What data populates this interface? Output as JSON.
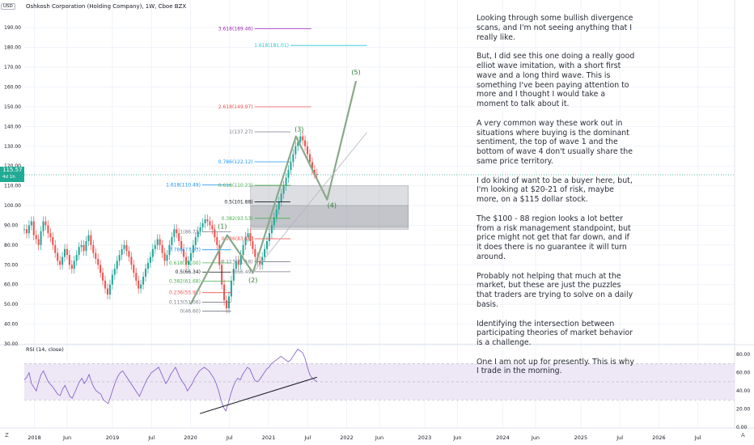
{
  "header": {
    "currency_badge": "USD",
    "title": "Oshkosh Corporation (Holding Company), 1W, Cboe BZX"
  },
  "price_badge": {
    "price": "115.57",
    "countdown": "4d 1h"
  },
  "rsi_label": "RSI (14, close)",
  "bottom_bar": {
    "left_icon": "Z",
    "right_icon": "A"
  },
  "commentary": [
    "Looking through some bullish divergence scans, and I'm not seeing anything that I really like.",
    "But, I did see this one doing a really good elliot wave imitation, with a short first wave and a long third wave. This is something I've been paying attention to more and I thought I would take a moment to talk about it.",
    "A very common way these work out in situations where buying is the dominant sentiment, the top of wave 1 and the bottom of wave 4 don't usually share the same price territory.",
    "I do kind of want to be a buyer here, but, I'm looking at $20-21 of risk, maybe more, on a $115 dollar stock.",
    "The $100 - 88 region looks a lot better from a risk management standpoint, but price might not get that far down, and if it does there is no guarantee it will turn around.",
    "Probably not helping that much at the market, but these are just the puzzles that traders are trying to solve on a daily basis.",
    "Identifying the intersection between participating theories of market behavior is a challenge.",
    "One I am not up for presently. This is why I trade in the morning."
  ],
  "colors": {
    "up": "#26a69a",
    "down": "#ef5350",
    "rsi_line": "#7e57c2",
    "rsi_band": "#ede7f6",
    "wave": "#8aa88a",
    "fib_red": "#ef5350",
    "fib_blue": "#2196f3",
    "fib_purple": "#9c27b0",
    "fib_green": "#4caf50",
    "fib_gray": "#787b86",
    "fib_black": "#131722",
    "fib_teal": "#26c6da"
  },
  "chart_data": [
    {
      "type": "candlestick",
      "title": "Oshkosh Corporation (Holding Company), 1W, Cboe BZX",
      "ylim": [
        30,
        195
      ],
      "y_ticks": [
        "190.00",
        "180.00",
        "170.00",
        "160.00",
        "150.00",
        "140.00",
        "130.00",
        "120.00",
        "110.00",
        "100.00",
        "90.00",
        "80.00",
        "70.00",
        "60.00",
        "50.00",
        "40.00",
        "30.00"
      ],
      "x_ticks": [
        "2018",
        "Jun",
        "2019",
        "Jul",
        "2020",
        "Jul",
        "2021",
        "Jul",
        "2022",
        "Jun",
        "2023",
        "Jun",
        "2024",
        "Jun",
        "2025",
        "Jul",
        "2026",
        "Jul"
      ],
      "x_tick_dates": [
        2018.0,
        2018.42,
        2019.0,
        2019.5,
        2020.0,
        2020.5,
        2021.0,
        2021.5,
        2022.0,
        2022.42,
        2023.0,
        2023.42,
        2024.0,
        2024.42,
        2025.0,
        2025.5,
        2026.0,
        2026.5
      ],
      "last_price": 115.57,
      "weekly_closes": [
        88,
        86,
        90,
        92,
        85,
        83,
        80,
        87,
        92,
        90,
        86,
        84,
        80,
        76,
        72,
        70,
        74,
        78,
        75,
        70,
        68,
        72,
        75,
        79,
        80,
        77,
        82,
        85,
        80,
        76,
        73,
        70,
        66,
        62,
        58,
        55,
        60,
        65,
        68,
        72,
        75,
        78,
        80,
        77,
        74,
        70,
        66,
        62,
        58,
        60,
        64,
        68,
        71,
        74,
        78,
        80,
        83,
        80,
        76,
        72,
        75,
        80,
        84,
        88,
        86,
        82,
        78,
        74,
        70,
        72,
        76,
        80,
        84,
        87,
        89,
        91,
        93,
        92,
        90,
        88,
        84,
        80,
        70,
        60,
        52,
        48,
        54,
        62,
        68,
        72,
        70,
        75,
        80,
        84,
        86,
        82,
        78,
        74,
        72,
        70,
        74,
        78,
        82,
        86,
        90,
        94,
        98,
        102,
        106,
        110,
        114,
        118,
        122,
        126,
        130,
        132,
        135,
        133,
        130,
        126,
        122,
        118,
        116,
        115.57
      ],
      "waves": {
        "labels": [
          "(1)",
          "(2)",
          "(3)",
          "(4)",
          "(5)"
        ],
        "points": [
          {
            "t": 2020.0,
            "y": 50
          },
          {
            "t": 2020.47,
            "y": 85
          },
          {
            "t": 2020.8,
            "y": 66
          },
          {
            "t": 2021.35,
            "y": 135
          },
          {
            "t": 2021.75,
            "y": 103
          },
          {
            "t": 2022.12,
            "y": 163
          }
        ],
        "trendline": [
          {
            "t": 2020.8,
            "y": 66
          },
          {
            "t": 2022.26,
            "y": 137
          }
        ]
      },
      "fib_levels": [
        {
          "label": "3.618(189.46)",
          "value": 189.46,
          "color": "fib_purple",
          "t0": 2020.82,
          "t1": 2020.82
        },
        {
          "label": "1.618(181.01)",
          "value": 181.01,
          "color": "fib_teal",
          "t0": 2021.28,
          "t1": 2022.26
        },
        {
          "label": "2.618(149.97)",
          "value": 149.97,
          "color": "fib_red",
          "t0": 2020.82,
          "t1": 2020.82
        },
        {
          "label": "1(137.27)",
          "value": 137.27,
          "color": "fib_gray",
          "t0": 2020.82,
          "t1": 2021.28
        },
        {
          "label": "0.786(122.12)",
          "value": 122.12,
          "color": "fib_blue",
          "t0": 2020.82,
          "t1": 2021.28
        },
        {
          "label": "1.618(110.49)",
          "value": 110.49,
          "color": "fib_blue",
          "t0": 2020.15,
          "t1": 2020.52
        },
        {
          "label": "0.618(110.23)",
          "value": 110.23,
          "color": "fib_green",
          "t0": 2020.82,
          "t1": 2021.28
        },
        {
          "label": "0.5(101.88)",
          "value": 101.88,
          "color": "fib_black",
          "t0": 2020.82,
          "t1": 2021.28
        },
        {
          "label": "0.382(93.53)",
          "value": 93.53,
          "color": "fib_green",
          "t0": 2020.82,
          "t1": 2021.28
        },
        {
          "label": "1(86.71)",
          "value": 86.71,
          "color": "fib_gray",
          "t0": 2020.15,
          "t1": 2020.52
        },
        {
          "label": "0.236(83.19)",
          "value": 83.19,
          "color": "fib_red",
          "t0": 2020.82,
          "t1": 2021.28
        },
        {
          "label": "0.786(77.63)",
          "value": 77.63,
          "color": "fib_blue",
          "t0": 2020.15,
          "t1": 2020.52
        },
        {
          "label": "0.113(71.58)",
          "value": 71.58,
          "color": "fib_gray",
          "t0": 2020.82,
          "t1": 2021.28
        },
        {
          "label": "0.618(71.00)",
          "value": 71.0,
          "color": "fib_green",
          "t0": 2020.15,
          "t1": 2020.52
        },
        {
          "label": "0.5(66.34)",
          "value": 66.34,
          "color": "fib_black",
          "t0": 2020.15,
          "t1": 2020.52
        },
        {
          "label": "0(66.49)",
          "value": 66.49,
          "color": "fib_gray",
          "t0": 2020.82,
          "t1": 2021.28
        },
        {
          "label": "0.382(61.68)",
          "value": 61.68,
          "color": "fib_green",
          "t0": 2020.15,
          "t1": 2020.52
        },
        {
          "label": "0.236(55.92)",
          "value": 55.92,
          "color": "fib_red",
          "t0": 2020.15,
          "t1": 2020.52
        },
        {
          "label": "0.113(51.06)",
          "value": 51.06,
          "color": "fib_gray",
          "t0": 2020.15,
          "t1": 2020.52
        },
        {
          "label": "0(46.60)",
          "value": 46.6,
          "color": "fib_gray",
          "t0": 2020.15,
          "t1": 2020.52
        }
      ],
      "zones": [
        {
          "label": "upper box",
          "from": 110,
          "to": 88,
          "t0": 2020.77,
          "t1": 2022.79
        },
        {
          "label": "lower box",
          "from": 100,
          "to": 89,
          "t0": 2020.77,
          "t1": 2022.79
        }
      ]
    },
    {
      "type": "line",
      "title": "RSI (14, close)",
      "ylim": [
        0,
        90
      ],
      "y_ticks": [
        "80.00",
        "60.00",
        "40.00",
        "20.00",
        "0.00"
      ],
      "bands": [
        30,
        70
      ],
      "midline": 50,
      "series": [
        {
          "values": [
            52,
            55,
            60,
            48,
            44,
            40,
            50,
            58,
            62,
            56,
            50,
            47,
            44,
            40,
            36,
            35,
            42,
            46,
            40,
            34,
            32,
            38,
            44,
            50,
            54,
            48,
            52,
            58,
            50,
            44,
            40,
            38,
            36,
            30,
            28,
            26,
            34,
            42,
            50,
            56,
            60,
            62,
            58,
            54,
            50,
            46,
            42,
            38,
            34,
            40,
            46,
            52,
            56,
            60,
            62,
            64,
            66,
            60,
            54,
            48,
            52,
            58,
            62,
            66,
            60,
            54,
            50,
            46,
            40,
            44,
            48,
            54,
            58,
            62,
            64,
            66,
            64,
            62,
            58,
            54,
            48,
            40,
            30,
            22,
            18,
            26,
            36,
            44,
            50,
            54,
            52,
            58,
            62,
            66,
            64,
            58,
            52,
            50,
            52,
            56,
            60,
            64,
            66,
            70,
            72,
            74,
            76,
            78,
            76,
            74,
            72,
            74,
            78,
            82,
            86,
            84,
            82,
            76,
            66,
            58,
            54,
            52,
            50
          ]
        }
      ],
      "trendline": [
        {
          "t": 2020.12,
          "y": 15
        },
        {
          "t": 2021.62,
          "y": 55
        }
      ]
    }
  ]
}
